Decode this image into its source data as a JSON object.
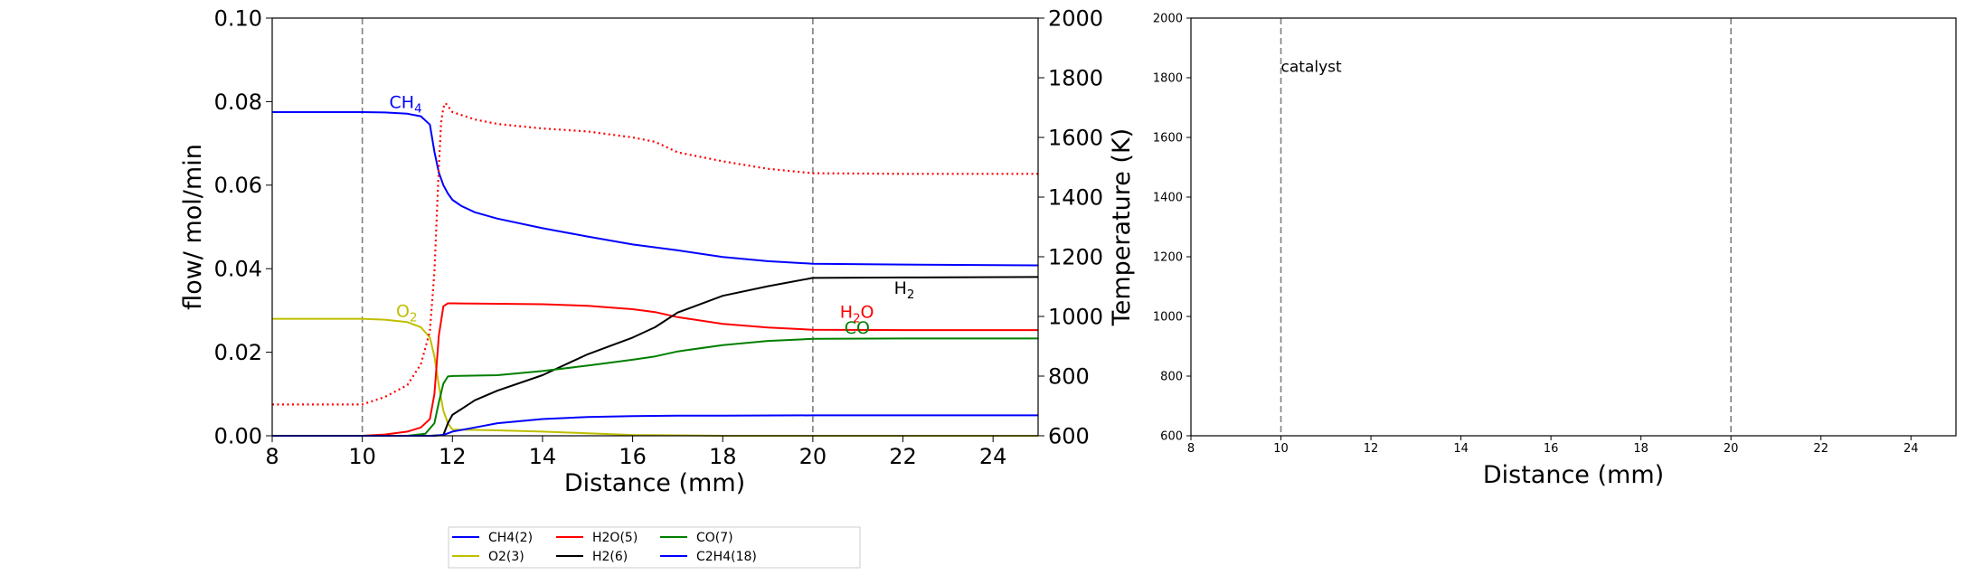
{
  "chart_data": [
    {
      "type": "line",
      "xlabel": "Distance (mm)",
      "ylabel": "flow/ mol/min",
      "ylabel_right": "Temperature (K)",
      "xlim": [
        8,
        25
      ],
      "ylim": [
        0,
        0.1
      ],
      "ylim_right": [
        600,
        2000
      ],
      "x_ticks": [
        "8",
        "10",
        "12",
        "14",
        "16",
        "18",
        "20",
        "22",
        "24"
      ],
      "y_ticks": [
        "0.00",
        "0.02",
        "0.04",
        "0.06",
        "0.08",
        "0.10"
      ],
      "y_right_ticks": [
        "600",
        "800",
        "1000",
        "1200",
        "1400",
        "1600",
        "1800",
        "2000"
      ],
      "vlines": [
        10,
        20
      ],
      "legend_position": "bottom-center",
      "series": [
        {
          "name": "CH4(2)",
          "color": "#0000ff",
          "style": "solid",
          "x": [
            8,
            10,
            10.5,
            11,
            11.3,
            11.5,
            11.6,
            11.7,
            11.8,
            11.9,
            12,
            12.2,
            12.5,
            13,
            14,
            15,
            16,
            17,
            18,
            19,
            20,
            22,
            25
          ],
          "y": [
            0.0775,
            0.0775,
            0.0774,
            0.0771,
            0.0765,
            0.0745,
            0.068,
            0.063,
            0.06,
            0.058,
            0.0565,
            0.055,
            0.0535,
            0.052,
            0.0497,
            0.0477,
            0.0458,
            0.0444,
            0.0428,
            0.0418,
            0.0412,
            0.041,
            0.0408
          ]
        },
        {
          "name": "O2(3)",
          "color": "#bfbf00",
          "style": "solid",
          "x": [
            8,
            10,
            10.5,
            11,
            11.3,
            11.5,
            11.6,
            11.7,
            11.8,
            11.9,
            12,
            12.5,
            13,
            14,
            15,
            16,
            17,
            18,
            20,
            25
          ],
          "y": [
            0.028,
            0.028,
            0.0278,
            0.0272,
            0.026,
            0.0235,
            0.019,
            0.012,
            0.006,
            0.003,
            0.0015,
            0.0014,
            0.0013,
            0.001,
            0.0006,
            0.0002,
            0.0001,
            0,
            0,
            0
          ]
        },
        {
          "name": "H2O(5)",
          "color": "#ff0000",
          "style": "solid",
          "x": [
            8,
            10,
            10.5,
            11,
            11.3,
            11.5,
            11.6,
            11.7,
            11.8,
            11.9,
            12,
            13,
            14,
            15,
            16,
            16.5,
            17,
            18,
            19,
            20,
            22,
            25
          ],
          "y": [
            0,
            0,
            0.0003,
            0.001,
            0.002,
            0.004,
            0.01,
            0.024,
            0.031,
            0.0317,
            0.0317,
            0.0316,
            0.0315,
            0.0311,
            0.0303,
            0.0296,
            0.0284,
            0.0268,
            0.0259,
            0.0254,
            0.0253,
            0.0253
          ]
        },
        {
          "name": "H2(6)",
          "color": "#000000",
          "style": "solid",
          "x": [
            8,
            11.5,
            11.8,
            11.9,
            12,
            12.5,
            13,
            14,
            15,
            16,
            16.5,
            17,
            18,
            19,
            20,
            22,
            25
          ],
          "y": [
            0,
            0,
            0.0002,
            0.003,
            0.005,
            0.0085,
            0.0108,
            0.0145,
            0.0195,
            0.0235,
            0.026,
            0.0295,
            0.0335,
            0.0358,
            0.0378,
            0.0379,
            0.038
          ]
        },
        {
          "name": "CO(7)",
          "color": "#007f00",
          "style": "solid",
          "x": [
            8,
            11,
            11.4,
            11.6,
            11.7,
            11.8,
            11.9,
            12,
            13,
            14,
            15,
            16,
            16.5,
            17,
            18,
            19,
            20,
            22,
            25
          ],
          "y": [
            0,
            0,
            0.0005,
            0.003,
            0.008,
            0.0125,
            0.0142,
            0.0143,
            0.0145,
            0.0155,
            0.0168,
            0.0182,
            0.019,
            0.0202,
            0.0217,
            0.0227,
            0.0232,
            0.0233,
            0.0233
          ]
        },
        {
          "name": "C2H4(18)",
          "color": "#0000ff",
          "style": "solid",
          "x": [
            8,
            11.6,
            11.8,
            12,
            12.5,
            13,
            14,
            15,
            16,
            17,
            18,
            20,
            25
          ],
          "y": [
            0,
            0,
            0.0002,
            0.001,
            0.002,
            0.003,
            0.004,
            0.0045,
            0.0047,
            0.0048,
            0.0048,
            0.0049,
            0.0049
          ]
        },
        {
          "name": "",
          "axis": "right",
          "color": "#ff0000",
          "style": "dotted",
          "x": [
            8,
            10,
            10.5,
            11,
            11.3,
            11.5,
            11.6,
            11.7,
            11.75,
            11.8,
            11.85,
            11.9,
            12,
            12.5,
            13,
            14,
            15,
            16,
            16.5,
            17,
            18,
            19,
            20,
            22,
            25
          ],
          "y": [
            705,
            705,
            730,
            770,
            840,
            950,
            1150,
            1500,
            1650,
            1700,
            1715,
            1705,
            1685,
            1660,
            1645,
            1630,
            1620,
            1600,
            1585,
            1550,
            1520,
            1495,
            1480,
            1478,
            1478
          ]
        }
      ],
      "annotations": [
        {
          "text": "CH",
          "sub": "4",
          "x": 10.6,
          "y": 0.0785,
          "color": "#0000ff"
        },
        {
          "text": "O",
          "sub": "2",
          "x": 10.75,
          "y": 0.0285,
          "color": "#bfbf00"
        },
        {
          "text": "H",
          "sub": "2",
          "x": 21.8,
          "y": 0.034,
          "color": "#000000"
        },
        {
          "text": "H",
          "sub": "2",
          "tail": "O",
          "x": 20.6,
          "y": 0.0283,
          "color": "#ff0000"
        },
        {
          "text": "CO",
          "x": 20.7,
          "y": 0.0245,
          "color": "#007f00"
        }
      ]
    },
    {
      "type": "line",
      "xlabel": "Distance (mm)",
      "ylabel": "",
      "xlim": [
        8,
        25
      ],
      "ylim": [
        600,
        2000
      ],
      "x_ticks": [
        "8",
        "10",
        "12",
        "14",
        "16",
        "18",
        "20",
        "22",
        "24"
      ],
      "y_ticks": [
        "600",
        "800",
        "1000",
        "1200",
        "1400",
        "1600",
        "1800",
        "2000"
      ],
      "vlines": [
        10,
        20
      ],
      "annotations": [
        {
          "text": "catalyst",
          "x": 10,
          "y": 1820,
          "color": "#000000"
        }
      ],
      "series": []
    }
  ]
}
